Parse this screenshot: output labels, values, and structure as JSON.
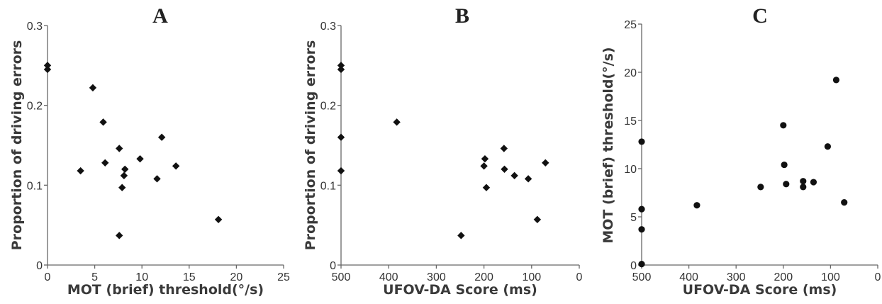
{
  "chart_data": [
    {
      "type": "scatter",
      "title": "A",
      "xlabel": "MOT (brief) threshold(°/s)",
      "ylabel": "Proportion of driving errors",
      "xlim": [
        0,
        25
      ],
      "ylim": [
        0,
        0.3
      ],
      "xticks": [
        0,
        5,
        10,
        15,
        20,
        25
      ],
      "xtick_labels": [
        "0",
        "5",
        "10",
        "15",
        "20",
        "25"
      ],
      "yticks": [
        0,
        0.1,
        0.2,
        0.3
      ],
      "ytick_labels": [
        "0",
        "0.1",
        "0.2",
        "0.3"
      ],
      "x_reversed": false,
      "marker": "diamond",
      "grid": false,
      "points": [
        {
          "x": 0.0,
          "y": 0.25
        },
        {
          "x": 0.0,
          "y": 0.245
        },
        {
          "x": 3.5,
          "y": 0.118
        },
        {
          "x": 4.8,
          "y": 0.222
        },
        {
          "x": 5.9,
          "y": 0.179
        },
        {
          "x": 6.1,
          "y": 0.128
        },
        {
          "x": 7.6,
          "y": 0.146
        },
        {
          "x": 7.9,
          "y": 0.097
        },
        {
          "x": 8.1,
          "y": 0.112
        },
        {
          "x": 8.2,
          "y": 0.12
        },
        {
          "x": 7.6,
          "y": 0.037
        },
        {
          "x": 9.8,
          "y": 0.133
        },
        {
          "x": 11.6,
          "y": 0.108
        },
        {
          "x": 12.1,
          "y": 0.16
        },
        {
          "x": 13.6,
          "y": 0.124
        },
        {
          "x": 18.1,
          "y": 0.057
        }
      ]
    },
    {
      "type": "scatter",
      "title": "B",
      "xlabel": "UFOV-DA Score (ms)",
      "ylabel": "Proportion of driving errors",
      "xlim": [
        500,
        0
      ],
      "ylim": [
        0,
        0.3
      ],
      "xticks": [
        500,
        400,
        300,
        200,
        100,
        0
      ],
      "xtick_labels": [
        "500",
        "400",
        "300",
        "200",
        "100",
        "0"
      ],
      "yticks": [
        0,
        0.1,
        0.2,
        0.3
      ],
      "ytick_labels": [
        "0",
        "0.1",
        "0.2",
        "0.3"
      ],
      "x_reversed": true,
      "marker": "diamond",
      "grid": false,
      "points": [
        {
          "x": 500,
          "y": 0.25
        },
        {
          "x": 500,
          "y": 0.245
        },
        {
          "x": 500,
          "y": 0.16
        },
        {
          "x": 500,
          "y": 0.118
        },
        {
          "x": 383,
          "y": 0.179
        },
        {
          "x": 248,
          "y": 0.037
        },
        {
          "x": 198,
          "y": 0.133
        },
        {
          "x": 200,
          "y": 0.124
        },
        {
          "x": 195,
          "y": 0.097
        },
        {
          "x": 158,
          "y": 0.146
        },
        {
          "x": 157,
          "y": 0.12
        },
        {
          "x": 136,
          "y": 0.112
        },
        {
          "x": 107,
          "y": 0.108
        },
        {
          "x": 88,
          "y": 0.057
        },
        {
          "x": 71,
          "y": 0.128
        }
      ]
    },
    {
      "type": "scatter",
      "title": "C",
      "xlabel": "UFOV-DA Score (ms)",
      "ylabel": "MOT (brief) threshold(°/s)",
      "xlim": [
        500,
        0
      ],
      "ylim": [
        0,
        25
      ],
      "xticks": [
        500,
        400,
        300,
        200,
        100,
        0
      ],
      "xtick_labels": [
        "500",
        "400",
        "300",
        "200",
        "100",
        "0"
      ],
      "yticks": [
        0,
        5,
        10,
        15,
        20,
        25
      ],
      "ytick_labels": [
        "0",
        "5",
        "10",
        "15",
        "20",
        "25"
      ],
      "x_reversed": true,
      "marker": "circle",
      "grid": false,
      "points": [
        {
          "x": 500,
          "y": 12.8
        },
        {
          "x": 500,
          "y": 5.8
        },
        {
          "x": 500,
          "y": 3.7
        },
        {
          "x": 500,
          "y": 0.1
        },
        {
          "x": 383,
          "y": 6.2
        },
        {
          "x": 248,
          "y": 8.1
        },
        {
          "x": 200,
          "y": 14.5
        },
        {
          "x": 198,
          "y": 10.4
        },
        {
          "x": 194,
          "y": 8.4
        },
        {
          "x": 158,
          "y": 8.7
        },
        {
          "x": 158,
          "y": 8.1
        },
        {
          "x": 136,
          "y": 8.6
        },
        {
          "x": 106,
          "y": 12.3
        },
        {
          "x": 88,
          "y": 19.2
        },
        {
          "x": 71,
          "y": 6.5
        }
      ]
    }
  ]
}
